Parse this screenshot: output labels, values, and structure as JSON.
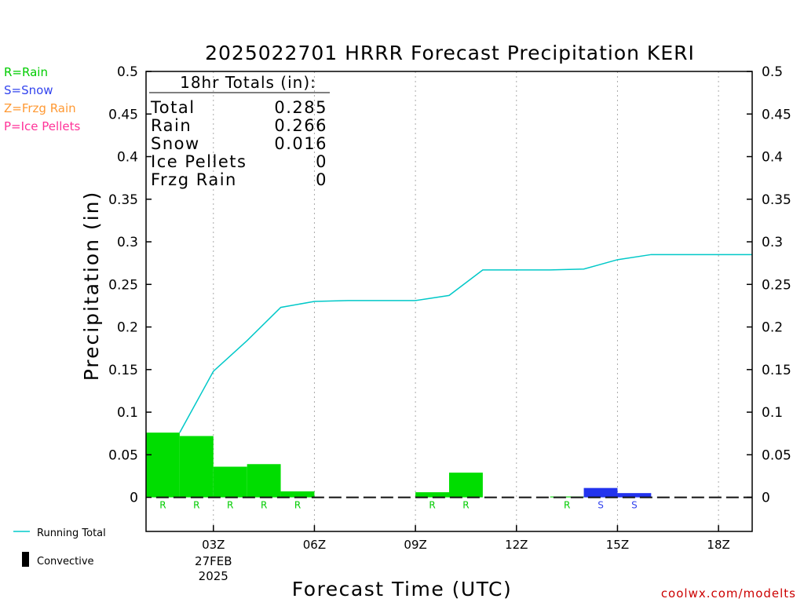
{
  "chart_data": {
    "type": "bar",
    "title": "2025022701 HRRR Forecast Precipitation KERI",
    "xlabel": "Forecast Time (UTC)",
    "ylabel": "Precipitation (in)",
    "ylim": [
      -0.04,
      0.5
    ],
    "xlim": [
      1.0,
      19.0
    ],
    "y_ticks": [
      0,
      0.05,
      0.1,
      0.15,
      0.2,
      0.25,
      0.3,
      0.35,
      0.4,
      0.45,
      0.5
    ],
    "y_tick_labels": [
      "0",
      "0.05",
      "0.1",
      "0.15",
      "0.2",
      "0.25",
      "0.3",
      "0.35",
      "0.4",
      "0.45",
      "0.5"
    ],
    "x_ticks": [
      {
        "hour": 3,
        "label": "03Z",
        "sub1": "27FEB",
        "sub2": "2025"
      },
      {
        "hour": 6,
        "label": "06Z"
      },
      {
        "hour": 9,
        "label": "09Z"
      },
      {
        "hour": 12,
        "label": "12Z"
      },
      {
        "hour": 15,
        "label": "15Z"
      },
      {
        "hour": 18,
        "label": "18Z"
      }
    ],
    "hourly_precip": [
      {
        "hour": 2,
        "value": 0.076,
        "type": "R"
      },
      {
        "hour": 3,
        "value": 0.072,
        "type": "R"
      },
      {
        "hour": 4,
        "value": 0.036,
        "type": "R"
      },
      {
        "hour": 5,
        "value": 0.039,
        "type": "R"
      },
      {
        "hour": 6,
        "value": 0.007,
        "type": "R"
      },
      {
        "hour": 7,
        "value": 0,
        "type": ""
      },
      {
        "hour": 8,
        "value": 0,
        "type": ""
      },
      {
        "hour": 9,
        "value": 0,
        "type": ""
      },
      {
        "hour": 10,
        "value": 0.006,
        "type": "R"
      },
      {
        "hour": 11,
        "value": 0.029,
        "type": "R"
      },
      {
        "hour": 12,
        "value": 0,
        "type": ""
      },
      {
        "hour": 13,
        "value": 0,
        "type": ""
      },
      {
        "hour": 14,
        "value": 0.001,
        "type": "R"
      },
      {
        "hour": 15,
        "value": 0.011,
        "type": "S"
      },
      {
        "hour": 16,
        "value": 0.005,
        "type": "S"
      },
      {
        "hour": 17,
        "value": 0,
        "type": ""
      },
      {
        "hour": 18,
        "value": 0,
        "type": ""
      },
      {
        "hour": 19,
        "value": 0,
        "type": ""
      }
    ],
    "running_total": {
      "name": "Running Total",
      "x": [
        2,
        3,
        4,
        5,
        6,
        7,
        8,
        9,
        10,
        11,
        12,
        13,
        14,
        15,
        16,
        17,
        18,
        19
      ],
      "y": [
        0.076,
        0.148,
        0.184,
        0.223,
        0.23,
        0.231,
        0.231,
        0.231,
        0.237,
        0.267,
        0.267,
        0.267,
        0.268,
        0.279,
        0.285,
        0.285,
        0.285,
        0.285
      ]
    },
    "totals_box": {
      "heading": "18hr Totals (in):",
      "rows": [
        {
          "label": "Total",
          "value": "0.285"
        },
        {
          "label": "Rain",
          "value": "0.266"
        },
        {
          "label": "Snow",
          "value": "0.016"
        },
        {
          "label": "Ice Pellets",
          "value": "0"
        },
        {
          "label": "Frzg Rain",
          "value": "0"
        }
      ]
    },
    "type_legend": [
      {
        "label": "R=Rain",
        "color": "#00cc00"
      },
      {
        "label": "S=Snow",
        "color": "#3344ee"
      },
      {
        "label": "Z=Frzg Rain",
        "color": "#ff9933"
      },
      {
        "label": "P=Ice Pellets",
        "color": "#ff3399"
      }
    ],
    "series_legend": [
      {
        "label": "Running Total",
        "color": "#00cccc"
      },
      {
        "label": "Convective",
        "color": "#000000"
      }
    ],
    "type_colors": {
      "R": "#00dd00",
      "S": "#2233ee",
      "Z": "#ff9933",
      "P": "#ff3399"
    },
    "type_letter_colors": {
      "R": "#00cc00",
      "S": "#3344ee",
      "Z": "#ff9933",
      "P": "#ff3399"
    },
    "line_color": "#00c8c8",
    "grid": true,
    "credit": "coolwx.com/modelts",
    "credit_color": "#cc0000"
  }
}
